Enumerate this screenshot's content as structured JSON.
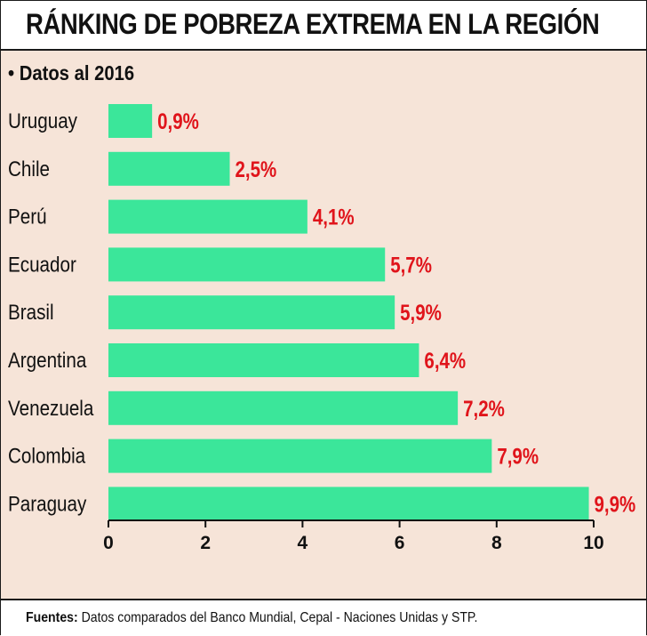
{
  "title": "RÁNKING DE POBREZA EXTREMA EN LA REGIÓN",
  "subtitle": "• Datos al 2016",
  "footer": {
    "label": "Fuentes:",
    "text": " Datos comparados del Banco Mundial, Cepal - Naciones Unidas y STP."
  },
  "colors": {
    "bar": "#3be69a",
    "value_label": "#e0141b",
    "background": "#f6e4d8"
  },
  "chart_data": {
    "type": "bar",
    "orientation": "horizontal",
    "categories": [
      "Uruguay",
      "Chile",
      "Perú",
      "Ecuador",
      "Brasil",
      "Argentina",
      "Venezuela",
      "Colombia",
      "Paraguay"
    ],
    "values": [
      0.9,
      2.5,
      4.1,
      5.7,
      5.9,
      6.4,
      7.2,
      7.9,
      9.9
    ],
    "value_labels": [
      "0,9%",
      "2,5%",
      "4,1%",
      "5,7%",
      "5,9%",
      "6,4%",
      "7,2%",
      "7,9%",
      "9,9%"
    ],
    "xticks": [
      0,
      2,
      4,
      6,
      8,
      10
    ],
    "xlim": [
      0,
      10
    ],
    "grid": false
  }
}
